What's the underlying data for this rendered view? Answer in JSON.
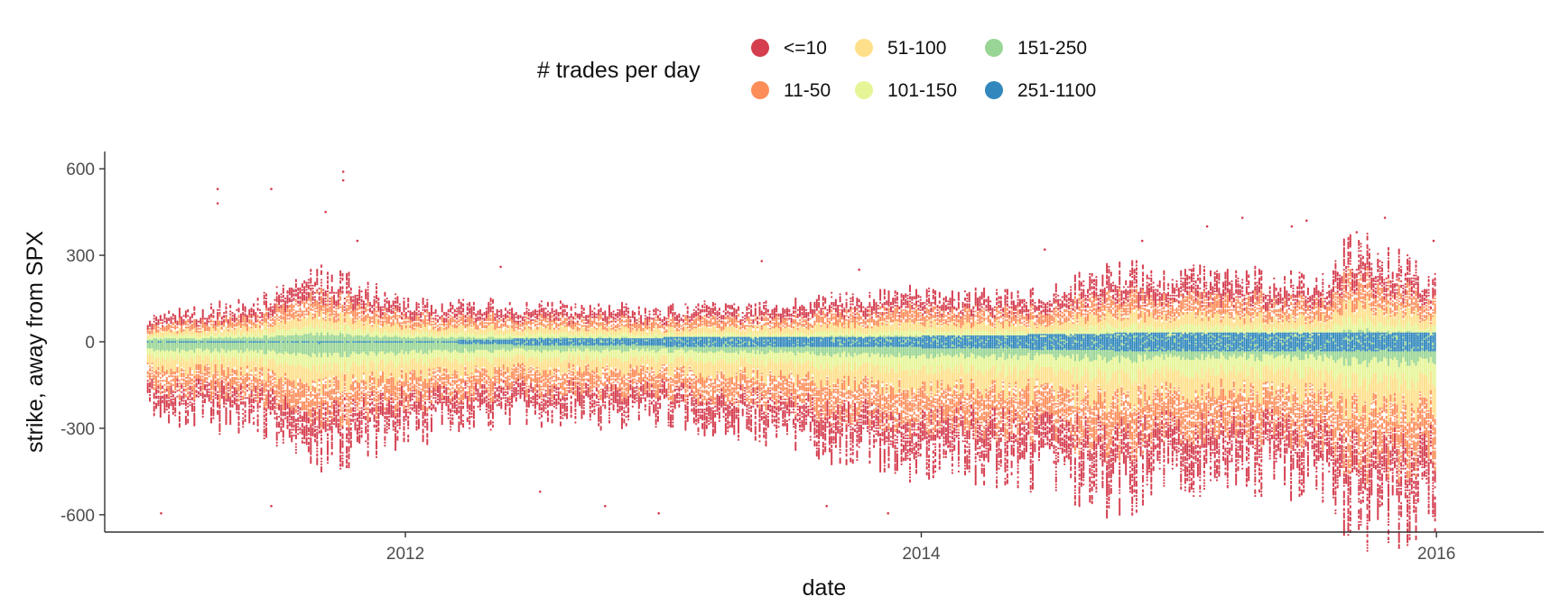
{
  "chart_data": {
    "type": "scatter",
    "xlabel": "date",
    "ylabel": "strike, away from SPX",
    "x_range": [
      "2010-11-01",
      "2016-06-01"
    ],
    "y_range": [
      -660,
      660
    ],
    "x_ticks": [
      {
        "value": "2012-01-01",
        "label": "2012"
      },
      {
        "value": "2014-01-01",
        "label": "2014"
      },
      {
        "value": "2016-01-01",
        "label": "2016"
      }
    ],
    "y_ticks": [
      {
        "value": 600,
        "label": "600"
      },
      {
        "value": 300,
        "label": "300"
      },
      {
        "value": 0,
        "label": "0"
      },
      {
        "value": -300,
        "label": "-300"
      },
      {
        "value": -600,
        "label": "-600"
      }
    ],
    "grid": false,
    "legend": {
      "title": "# trades per day",
      "position": "top",
      "entries": [
        {
          "label": "<=10",
          "color": "#D53E4F"
        },
        {
          "label": "11-50",
          "color": "#FC8D59"
        },
        {
          "label": "51-100",
          "color": "#FEE08B"
        },
        {
          "label": "101-150",
          "color": "#E6F598"
        },
        {
          "label": "151-250",
          "color": "#99D594"
        },
        {
          "label": "251-1100",
          "color": "#3288BD"
        }
      ]
    },
    "date_range": [
      "2011-01-01",
      "2016-01-01"
    ],
    "strike_step": 5,
    "series_profile": [
      {
        "date": "2011-01-01",
        "upper": 80,
        "lower": -230,
        "blue_half_width": 0
      },
      {
        "date": "2011-06-01",
        "upper": 130,
        "lower": -270,
        "blue_half_width": 0
      },
      {
        "date": "2011-09-01",
        "upper": 230,
        "lower": -380,
        "blue_half_width": 5
      },
      {
        "date": "2012-01-01",
        "upper": 130,
        "lower": -300,
        "blue_half_width": 0
      },
      {
        "date": "2012-06-01",
        "upper": 120,
        "lower": -240,
        "blue_half_width": 10
      },
      {
        "date": "2013-01-01",
        "upper": 110,
        "lower": -250,
        "blue_half_width": 15
      },
      {
        "date": "2013-06-01",
        "upper": 120,
        "lower": -300,
        "blue_half_width": 15
      },
      {
        "date": "2014-01-01",
        "upper": 160,
        "lower": -400,
        "blue_half_width": 20
      },
      {
        "date": "2014-06-01",
        "upper": 150,
        "lower": -420,
        "blue_half_width": 25
      },
      {
        "date": "2014-10-01",
        "upper": 230,
        "lower": -500,
        "blue_half_width": 30
      },
      {
        "date": "2015-03-01",
        "upper": 220,
        "lower": -430,
        "blue_half_width": 30
      },
      {
        "date": "2015-08-01",
        "upper": 190,
        "lower": -450,
        "blue_half_width": 35
      },
      {
        "date": "2015-09-01",
        "upper": 330,
        "lower": -590,
        "blue_half_width": 30
      },
      {
        "date": "2016-01-01",
        "upper": 200,
        "lower": -560,
        "blue_half_width": 30
      }
    ],
    "outliers": [
      {
        "date": "2011-01-20",
        "y": -595
      },
      {
        "date": "2011-04-10",
        "y": 530
      },
      {
        "date": "2011-04-10",
        "y": 480
      },
      {
        "date": "2011-06-25",
        "y": 530
      },
      {
        "date": "2011-06-25",
        "y": -570
      },
      {
        "date": "2011-09-10",
        "y": 450
      },
      {
        "date": "2011-10-05",
        "y": 590
      },
      {
        "date": "2011-10-05",
        "y": 560
      },
      {
        "date": "2011-10-25",
        "y": 350
      },
      {
        "date": "2012-05-15",
        "y": 260
      },
      {
        "date": "2012-07-10",
        "y": -520
      },
      {
        "date": "2012-10-10",
        "y": -570
      },
      {
        "date": "2012-12-25",
        "y": -595
      },
      {
        "date": "2013-05-20",
        "y": 280
      },
      {
        "date": "2013-08-20",
        "y": -570
      },
      {
        "date": "2013-10-05",
        "y": 250
      },
      {
        "date": "2013-11-15",
        "y": -595
      },
      {
        "date": "2014-06-25",
        "y": 320
      },
      {
        "date": "2014-11-10",
        "y": 350
      },
      {
        "date": "2015-02-10",
        "y": 400
      },
      {
        "date": "2015-04-01",
        "y": 430
      },
      {
        "date": "2015-06-10",
        "y": 400
      },
      {
        "date": "2015-07-01",
        "y": 420
      },
      {
        "date": "2015-09-10",
        "y": 380
      },
      {
        "date": "2015-10-20",
        "y": 430
      },
      {
        "date": "2015-12-28",
        "y": 350
      }
    ]
  }
}
